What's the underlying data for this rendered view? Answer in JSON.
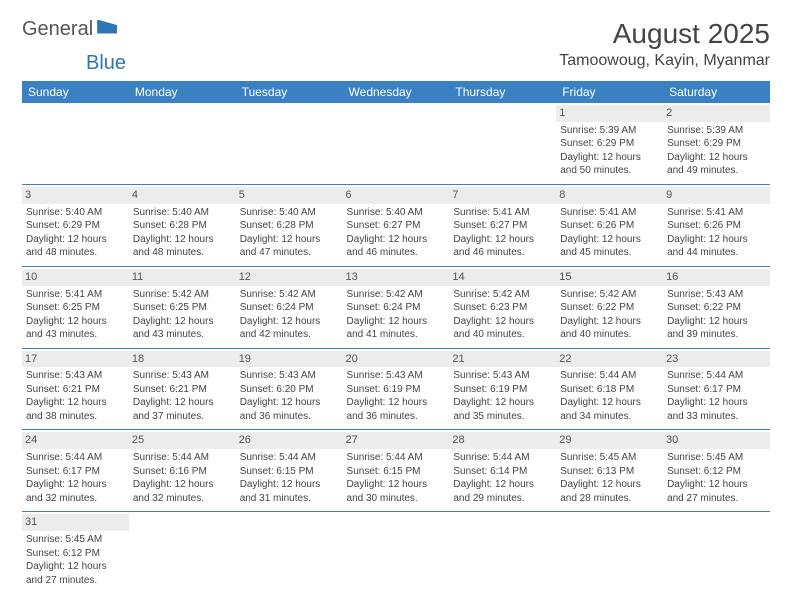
{
  "logo": {
    "text1": "General",
    "text2": "Blue"
  },
  "title": "August 2025",
  "location": "Tamoowoug, Kayin, Myanmar",
  "headers": [
    "Sunday",
    "Monday",
    "Tuesday",
    "Wednesday",
    "Thursday",
    "Friday",
    "Saturday"
  ],
  "colors": {
    "header_bg": "#3a81c4",
    "header_fg": "#ffffff",
    "daynum_bg": "#ececec",
    "border": "#3a81c4"
  },
  "weeks": [
    [
      {
        "n": "",
        "sr": "",
        "ss": "",
        "d1": "",
        "d2": ""
      },
      {
        "n": "",
        "sr": "",
        "ss": "",
        "d1": "",
        "d2": ""
      },
      {
        "n": "",
        "sr": "",
        "ss": "",
        "d1": "",
        "d2": ""
      },
      {
        "n": "",
        "sr": "",
        "ss": "",
        "d1": "",
        "d2": ""
      },
      {
        "n": "",
        "sr": "",
        "ss": "",
        "d1": "",
        "d2": ""
      },
      {
        "n": "1",
        "sr": "Sunrise: 5:39 AM",
        "ss": "Sunset: 6:29 PM",
        "d1": "Daylight: 12 hours",
        "d2": "and 50 minutes."
      },
      {
        "n": "2",
        "sr": "Sunrise: 5:39 AM",
        "ss": "Sunset: 6:29 PM",
        "d1": "Daylight: 12 hours",
        "d2": "and 49 minutes."
      }
    ],
    [
      {
        "n": "3",
        "sr": "Sunrise: 5:40 AM",
        "ss": "Sunset: 6:29 PM",
        "d1": "Daylight: 12 hours",
        "d2": "and 48 minutes."
      },
      {
        "n": "4",
        "sr": "Sunrise: 5:40 AM",
        "ss": "Sunset: 6:28 PM",
        "d1": "Daylight: 12 hours",
        "d2": "and 48 minutes."
      },
      {
        "n": "5",
        "sr": "Sunrise: 5:40 AM",
        "ss": "Sunset: 6:28 PM",
        "d1": "Daylight: 12 hours",
        "d2": "and 47 minutes."
      },
      {
        "n": "6",
        "sr": "Sunrise: 5:40 AM",
        "ss": "Sunset: 6:27 PM",
        "d1": "Daylight: 12 hours",
        "d2": "and 46 minutes."
      },
      {
        "n": "7",
        "sr": "Sunrise: 5:41 AM",
        "ss": "Sunset: 6:27 PM",
        "d1": "Daylight: 12 hours",
        "d2": "and 46 minutes."
      },
      {
        "n": "8",
        "sr": "Sunrise: 5:41 AM",
        "ss": "Sunset: 6:26 PM",
        "d1": "Daylight: 12 hours",
        "d2": "and 45 minutes."
      },
      {
        "n": "9",
        "sr": "Sunrise: 5:41 AM",
        "ss": "Sunset: 6:26 PM",
        "d1": "Daylight: 12 hours",
        "d2": "and 44 minutes."
      }
    ],
    [
      {
        "n": "10",
        "sr": "Sunrise: 5:41 AM",
        "ss": "Sunset: 6:25 PM",
        "d1": "Daylight: 12 hours",
        "d2": "and 43 minutes."
      },
      {
        "n": "11",
        "sr": "Sunrise: 5:42 AM",
        "ss": "Sunset: 6:25 PM",
        "d1": "Daylight: 12 hours",
        "d2": "and 43 minutes."
      },
      {
        "n": "12",
        "sr": "Sunrise: 5:42 AM",
        "ss": "Sunset: 6:24 PM",
        "d1": "Daylight: 12 hours",
        "d2": "and 42 minutes."
      },
      {
        "n": "13",
        "sr": "Sunrise: 5:42 AM",
        "ss": "Sunset: 6:24 PM",
        "d1": "Daylight: 12 hours",
        "d2": "and 41 minutes."
      },
      {
        "n": "14",
        "sr": "Sunrise: 5:42 AM",
        "ss": "Sunset: 6:23 PM",
        "d1": "Daylight: 12 hours",
        "d2": "and 40 minutes."
      },
      {
        "n": "15",
        "sr": "Sunrise: 5:42 AM",
        "ss": "Sunset: 6:22 PM",
        "d1": "Daylight: 12 hours",
        "d2": "and 40 minutes."
      },
      {
        "n": "16",
        "sr": "Sunrise: 5:43 AM",
        "ss": "Sunset: 6:22 PM",
        "d1": "Daylight: 12 hours",
        "d2": "and 39 minutes."
      }
    ],
    [
      {
        "n": "17",
        "sr": "Sunrise: 5:43 AM",
        "ss": "Sunset: 6:21 PM",
        "d1": "Daylight: 12 hours",
        "d2": "and 38 minutes."
      },
      {
        "n": "18",
        "sr": "Sunrise: 5:43 AM",
        "ss": "Sunset: 6:21 PM",
        "d1": "Daylight: 12 hours",
        "d2": "and 37 minutes."
      },
      {
        "n": "19",
        "sr": "Sunrise: 5:43 AM",
        "ss": "Sunset: 6:20 PM",
        "d1": "Daylight: 12 hours",
        "d2": "and 36 minutes."
      },
      {
        "n": "20",
        "sr": "Sunrise: 5:43 AM",
        "ss": "Sunset: 6:19 PM",
        "d1": "Daylight: 12 hours",
        "d2": "and 36 minutes."
      },
      {
        "n": "21",
        "sr": "Sunrise: 5:43 AM",
        "ss": "Sunset: 6:19 PM",
        "d1": "Daylight: 12 hours",
        "d2": "and 35 minutes."
      },
      {
        "n": "22",
        "sr": "Sunrise: 5:44 AM",
        "ss": "Sunset: 6:18 PM",
        "d1": "Daylight: 12 hours",
        "d2": "and 34 minutes."
      },
      {
        "n": "23",
        "sr": "Sunrise: 5:44 AM",
        "ss": "Sunset: 6:17 PM",
        "d1": "Daylight: 12 hours",
        "d2": "and 33 minutes."
      }
    ],
    [
      {
        "n": "24",
        "sr": "Sunrise: 5:44 AM",
        "ss": "Sunset: 6:17 PM",
        "d1": "Daylight: 12 hours",
        "d2": "and 32 minutes."
      },
      {
        "n": "25",
        "sr": "Sunrise: 5:44 AM",
        "ss": "Sunset: 6:16 PM",
        "d1": "Daylight: 12 hours",
        "d2": "and 32 minutes."
      },
      {
        "n": "26",
        "sr": "Sunrise: 5:44 AM",
        "ss": "Sunset: 6:15 PM",
        "d1": "Daylight: 12 hours",
        "d2": "and 31 minutes."
      },
      {
        "n": "27",
        "sr": "Sunrise: 5:44 AM",
        "ss": "Sunset: 6:15 PM",
        "d1": "Daylight: 12 hours",
        "d2": "and 30 minutes."
      },
      {
        "n": "28",
        "sr": "Sunrise: 5:44 AM",
        "ss": "Sunset: 6:14 PM",
        "d1": "Daylight: 12 hours",
        "d2": "and 29 minutes."
      },
      {
        "n": "29",
        "sr": "Sunrise: 5:45 AM",
        "ss": "Sunset: 6:13 PM",
        "d1": "Daylight: 12 hours",
        "d2": "and 28 minutes."
      },
      {
        "n": "30",
        "sr": "Sunrise: 5:45 AM",
        "ss": "Sunset: 6:12 PM",
        "d1": "Daylight: 12 hours",
        "d2": "and 27 minutes."
      }
    ],
    [
      {
        "n": "31",
        "sr": "Sunrise: 5:45 AM",
        "ss": "Sunset: 6:12 PM",
        "d1": "Daylight: 12 hours",
        "d2": "and 27 minutes."
      },
      {
        "n": "",
        "sr": "",
        "ss": "",
        "d1": "",
        "d2": ""
      },
      {
        "n": "",
        "sr": "",
        "ss": "",
        "d1": "",
        "d2": ""
      },
      {
        "n": "",
        "sr": "",
        "ss": "",
        "d1": "",
        "d2": ""
      },
      {
        "n": "",
        "sr": "",
        "ss": "",
        "d1": "",
        "d2": ""
      },
      {
        "n": "",
        "sr": "",
        "ss": "",
        "d1": "",
        "d2": ""
      },
      {
        "n": "",
        "sr": "",
        "ss": "",
        "d1": "",
        "d2": ""
      }
    ]
  ]
}
